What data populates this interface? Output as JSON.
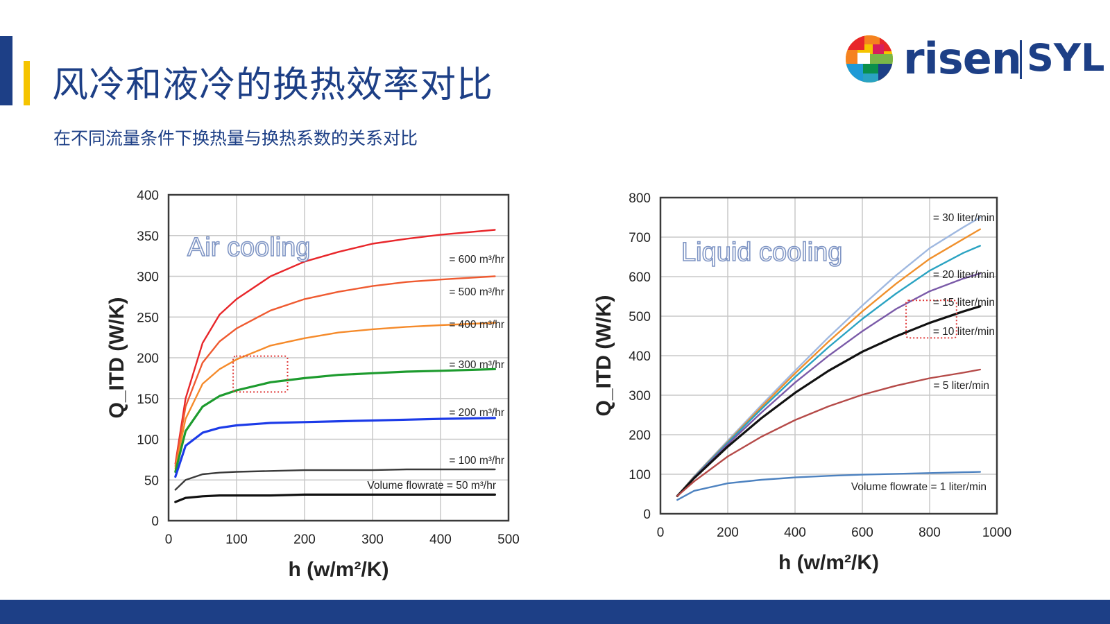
{
  "slide": {
    "title": "风冷和液冷的换热效率对比",
    "subtitle": "在不同流量条件下换热量与换热系数的关系对比",
    "logo": {
      "name": "risen",
      "partner": "SYL"
    },
    "colors": {
      "brand": "#1d3f86",
      "accent": "#f5c400",
      "highlight_box": "#e03a3a"
    }
  },
  "chart_data": [
    {
      "type": "line",
      "annotation": "Air cooling",
      "xlabel": "h (w/m²/K)",
      "ylabel": "Q_ITD (W/K)",
      "xlim": [
        0,
        500
      ],
      "ylim": [
        0,
        400
      ],
      "xticks": [
        0,
        100,
        200,
        300,
        400,
        500
      ],
      "yticks": [
        0,
        50,
        100,
        150,
        200,
        250,
        300,
        350,
        400
      ],
      "grid": true,
      "highlight_box": {
        "x": [
          95,
          175
        ],
        "y": [
          158,
          202
        ]
      },
      "series": [
        {
          "name": "= 600 m³/hr",
          "color": "#e8262a",
          "x": [
            10,
            25,
            50,
            75,
            100,
            150,
            200,
            250,
            300,
            350,
            400,
            480
          ],
          "y": [
            70,
            150,
            218,
            253,
            272,
            300,
            318,
            330,
            340,
            346,
            351,
            357
          ]
        },
        {
          "name": "= 500 m³/hr",
          "color": "#ef5a30",
          "x": [
            10,
            25,
            50,
            75,
            100,
            150,
            200,
            250,
            300,
            350,
            400,
            480
          ],
          "y": [
            67,
            140,
            194,
            220,
            236,
            258,
            272,
            281,
            288,
            293,
            296,
            300
          ]
        },
        {
          "name": "= 400 m³/hr",
          "color": "#f58a2a",
          "x": [
            10,
            25,
            50,
            75,
            100,
            150,
            200,
            250,
            300,
            350,
            400,
            480
          ],
          "y": [
            64,
            125,
            168,
            186,
            198,
            215,
            224,
            231,
            235,
            238,
            240,
            243
          ]
        },
        {
          "name": "= 300 m³/hr",
          "color": "#1d9b2e",
          "x": [
            10,
            25,
            50,
            75,
            100,
            150,
            200,
            250,
            300,
            350,
            400,
            480
          ],
          "y": [
            60,
            110,
            140,
            153,
            160,
            170,
            175,
            179,
            181,
            183,
            184,
            186
          ]
        },
        {
          "name": "= 200 m³/hr",
          "color": "#1c3be8",
          "x": [
            10,
            25,
            50,
            75,
            100,
            150,
            200,
            250,
            300,
            350,
            400,
            480
          ],
          "y": [
            54,
            92,
            108,
            114,
            117,
            120,
            121,
            122,
            123,
            124,
            125,
            126
          ]
        },
        {
          "name": "= 100 m³/hr",
          "color": "#3a3a3a",
          "x": [
            10,
            25,
            50,
            75,
            100,
            150,
            200,
            250,
            300,
            350,
            400,
            480
          ],
          "y": [
            38,
            50,
            57,
            59,
            60,
            61,
            62,
            62,
            62,
            63,
            63,
            63
          ]
        },
        {
          "name": "Volume flowrate = 50 m³/hr",
          "color": "#111111",
          "x": [
            10,
            25,
            50,
            75,
            100,
            150,
            200,
            250,
            300,
            350,
            400,
            480
          ],
          "y": [
            23,
            28,
            30,
            31,
            31,
            31,
            32,
            32,
            32,
            32,
            32,
            32
          ]
        }
      ]
    },
    {
      "type": "line",
      "annotation": "Liquid cooling",
      "xlabel": "h (w/m²/K)",
      "ylabel": "Q_ITD (W/K)",
      "xlim": [
        0,
        1000
      ],
      "ylim": [
        0,
        800
      ],
      "xticks": [
        0,
        200,
        400,
        600,
        800,
        1000
      ],
      "yticks": [
        0,
        100,
        200,
        300,
        400,
        500,
        600,
        700,
        800
      ],
      "grid": true,
      "highlight_box": {
        "x": [
          730,
          880
        ],
        "y": [
          445,
          540
        ]
      },
      "series": [
        {
          "name": "= 30 liter/min",
          "color": "#9fb8e0",
          "x": [
            50,
            100,
            200,
            300,
            400,
            500,
            600,
            700,
            800,
            900,
            950
          ],
          "y": [
            45,
            95,
            185,
            275,
            362,
            447,
            527,
            603,
            672,
            725,
            750
          ]
        },
        {
          "name": "",
          "color": "#f0902c",
          "x": [
            50,
            100,
            200,
            300,
            400,
            500,
            600,
            700,
            800,
            900,
            950
          ],
          "y": [
            45,
            94,
            182,
            270,
            355,
            436,
            512,
            582,
            645,
            695,
            720
          ]
        },
        {
          "name": "= 20 liter/min",
          "color": "#2aa3c2",
          "x": [
            50,
            100,
            200,
            300,
            400,
            500,
            600,
            700,
            800,
            900,
            950
          ],
          "y": [
            45,
            93,
            180,
            265,
            346,
            422,
            493,
            557,
            615,
            660,
            678
          ]
        },
        {
          "name": "= 15 liter/min",
          "color": "#7a5aa8",
          "x": [
            50,
            100,
            200,
            300,
            400,
            500,
            600,
            700,
            800,
            900,
            950
          ],
          "y": [
            45,
            92,
            176,
            256,
            332,
            400,
            462,
            518,
            563,
            595,
            608
          ]
        },
        {
          "name": "= 10 liter/min",
          "color": "#111111",
          "x": [
            50,
            100,
            200,
            300,
            400,
            500,
            600,
            700,
            800,
            900,
            950
          ],
          "y": [
            45,
            90,
            170,
            242,
            306,
            362,
            410,
            449,
            483,
            512,
            525
          ]
        },
        {
          "name": "= 5 liter/min",
          "color": "#b54a48",
          "x": [
            50,
            100,
            200,
            300,
            400,
            500,
            600,
            700,
            800,
            900,
            950
          ],
          "y": [
            45,
            82,
            145,
            195,
            237,
            272,
            301,
            324,
            343,
            357,
            365
          ]
        },
        {
          "name": "Volume flowrate = 1 liter/min",
          "color": "#4d82c0",
          "x": [
            50,
            100,
            200,
            300,
            400,
            500,
            600,
            700,
            800,
            900,
            950
          ],
          "y": [
            35,
            58,
            77,
            86,
            92,
            96,
            99,
            101,
            103,
            105,
            106
          ]
        }
      ]
    }
  ]
}
